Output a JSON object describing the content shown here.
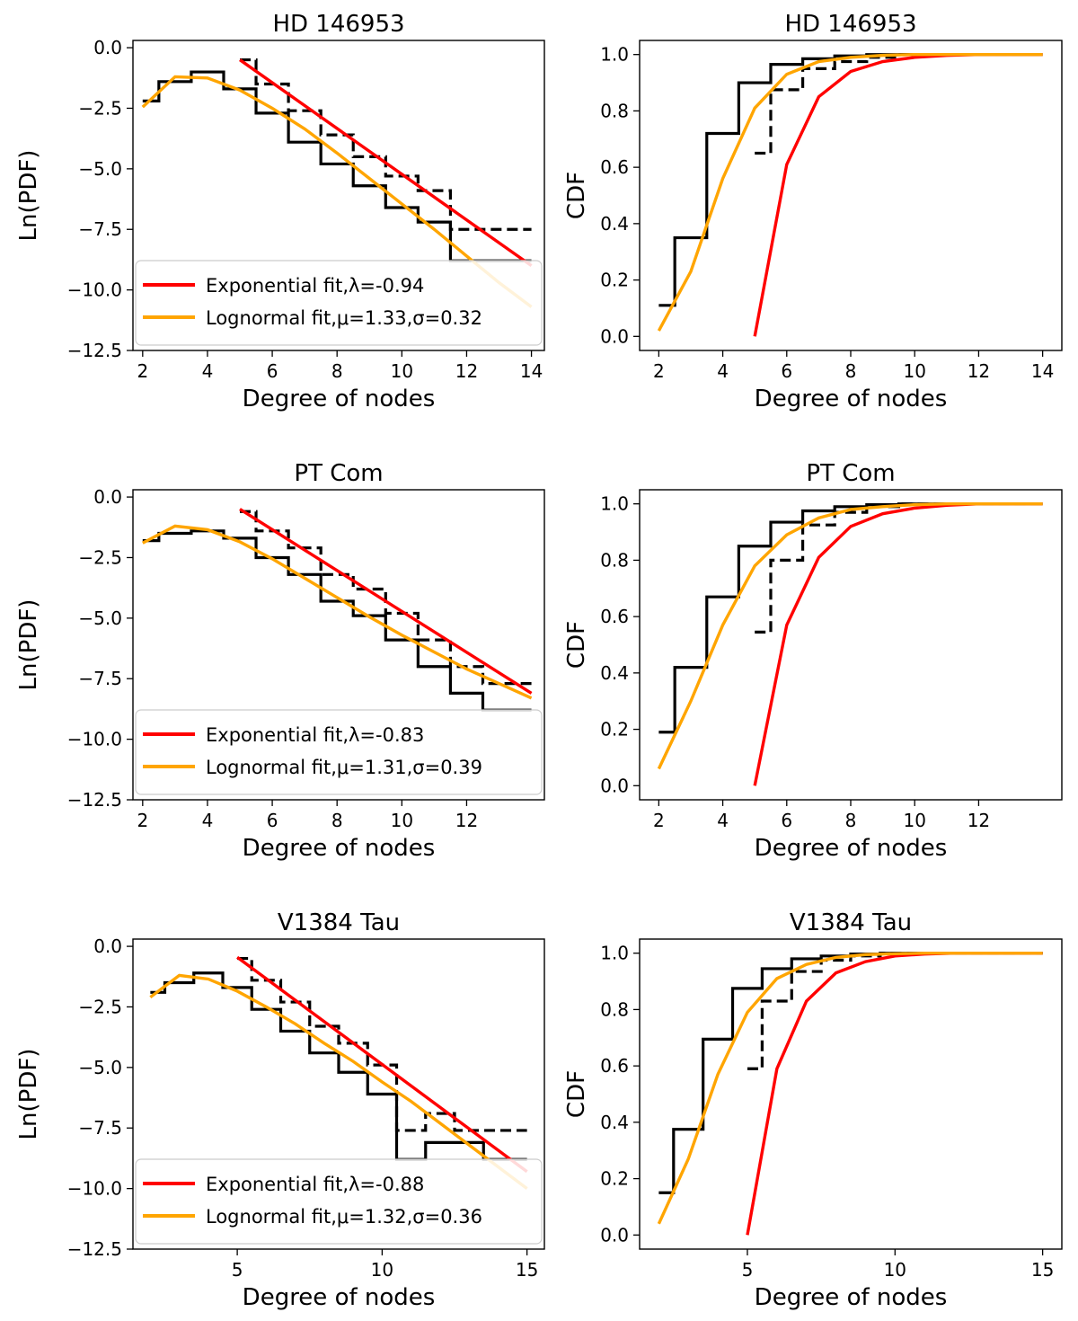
{
  "chart_data": [
    {
      "type": "line",
      "panel": "pdf",
      "title": "HD 146953",
      "xlabel": "Degree of nodes",
      "ylabel": "Ln(PDF)",
      "xlim": [
        1.7,
        14.4
      ],
      "ylim": [
        -12.5,
        0.3
      ],
      "xticks": [
        2,
        4,
        6,
        8,
        10,
        12,
        14
      ],
      "yticks": [
        0.0,
        -2.5,
        -5.0,
        -7.5,
        -10.0,
        -12.5
      ],
      "legend": "lower-left",
      "series": [
        {
          "name": "",
          "style": "step-solid",
          "color": "#000000",
          "x": [
            2,
            3,
            4,
            5,
            6,
            7,
            8,
            9,
            10,
            11,
            12,
            13,
            14
          ],
          "y": [
            -2.2,
            -1.4,
            -1.0,
            -1.7,
            -2.7,
            -3.9,
            -4.8,
            -5.7,
            -6.6,
            -7.2,
            -8.8,
            -8.8,
            -8.8
          ]
        },
        {
          "name": "",
          "style": "step-dashed",
          "color": "#000000",
          "x": [
            5,
            6,
            7,
            8,
            9,
            10,
            11,
            12,
            13,
            14
          ],
          "y": [
            -0.5,
            -1.5,
            -2.6,
            -3.6,
            -4.5,
            -5.3,
            -5.9,
            -7.5,
            -7.5,
            -7.5
          ]
        },
        {
          "name": "Exponential fit,λ=-0.94",
          "style": "line",
          "color": "#ff0000",
          "x": [
            5,
            14
          ],
          "y": [
            -0.5,
            -9.0
          ]
        },
        {
          "name": "Lognormal fit,μ=1.33,σ=0.32",
          "style": "line",
          "color": "#ffa500",
          "x": [
            2,
            3,
            4,
            5,
            6,
            7,
            8,
            9,
            10,
            11,
            12,
            13,
            14
          ],
          "y": [
            -2.45,
            -1.2,
            -1.25,
            -1.75,
            -2.5,
            -3.35,
            -4.35,
            -5.4,
            -6.45,
            -7.5,
            -8.6,
            -9.7,
            -10.7
          ]
        }
      ]
    },
    {
      "type": "line",
      "panel": "cdf",
      "title": "HD 146953",
      "xlabel": "Degree of nodes",
      "ylabel": "CDF",
      "xlim": [
        1.4,
        14.6
      ],
      "ylim": [
        -0.05,
        1.05
      ],
      "xticks": [
        2,
        4,
        6,
        8,
        10,
        12,
        14
      ],
      "yticks": [
        0.0,
        0.2,
        0.4,
        0.6,
        0.8,
        1.0
      ],
      "series": [
        {
          "name": "",
          "style": "step-solid",
          "color": "#000000",
          "x": [
            2,
            3,
            4,
            5,
            6,
            7,
            8,
            9,
            10,
            11,
            12,
            13,
            14
          ],
          "y": [
            0.11,
            0.35,
            0.72,
            0.9,
            0.965,
            0.985,
            0.995,
            1.0,
            1.0,
            1.0,
            1.0,
            1.0,
            1.0
          ]
        },
        {
          "name": "",
          "style": "step-dashed",
          "color": "#000000",
          "x": [
            5,
            6,
            7,
            8,
            9,
            10,
            11,
            12,
            13,
            14
          ],
          "y": [
            0.65,
            0.875,
            0.95,
            0.975,
            0.99,
            1.0,
            1.0,
            1.0,
            1.0,
            1.0
          ]
        },
        {
          "name": "",
          "style": "line",
          "color": "#ff0000",
          "x": [
            5,
            6,
            7,
            8,
            9,
            10,
            11,
            12,
            13,
            14
          ],
          "y": [
            0.0,
            0.61,
            0.85,
            0.94,
            0.975,
            0.99,
            0.997,
            1.0,
            1.0,
            1.0
          ]
        },
        {
          "name": "",
          "style": "line",
          "color": "#ffa500",
          "x": [
            2,
            3,
            4,
            5,
            6,
            7,
            8,
            9,
            10,
            11,
            12,
            13,
            14
          ],
          "y": [
            0.02,
            0.23,
            0.56,
            0.81,
            0.93,
            0.975,
            0.99,
            0.997,
            1.0,
            1.0,
            1.0,
            1.0,
            1.0
          ]
        }
      ]
    },
    {
      "type": "line",
      "panel": "pdf",
      "title": "PT Com",
      "xlabel": "Degree of nodes",
      "ylabel": "Ln(PDF)",
      "xlim": [
        1.7,
        14.4
      ],
      "ylim": [
        -12.5,
        0.3
      ],
      "xticks": [
        2,
        4,
        6,
        8,
        10,
        12
      ],
      "yticks": [
        0.0,
        -2.5,
        -5.0,
        -7.5,
        -10.0,
        -12.5
      ],
      "legend": "lower-left",
      "series": [
        {
          "name": "",
          "style": "step-solid",
          "color": "#000000",
          "x": [
            2,
            3,
            4,
            5,
            6,
            7,
            8,
            9,
            10,
            11,
            12,
            13,
            14
          ],
          "y": [
            -1.8,
            -1.5,
            -1.4,
            -1.7,
            -2.5,
            -3.2,
            -4.3,
            -4.9,
            -5.9,
            -7.0,
            -8.1,
            -8.8,
            -8.8
          ]
        },
        {
          "name": "",
          "style": "step-dashed",
          "color": "#000000",
          "x": [
            5,
            6,
            7,
            8,
            9,
            10,
            11,
            12,
            13,
            14
          ],
          "y": [
            -0.6,
            -1.4,
            -2.1,
            -3.2,
            -3.8,
            -4.8,
            -5.9,
            -7.0,
            -7.7,
            -7.7
          ]
        },
        {
          "name": "Exponential fit,λ=-0.83",
          "style": "line",
          "color": "#ff0000",
          "x": [
            5,
            14
          ],
          "y": [
            -0.5,
            -8.1
          ]
        },
        {
          "name": "Lognormal fit,μ=1.31,σ=0.39",
          "style": "line",
          "color": "#ffa500",
          "x": [
            2,
            3,
            4,
            5,
            6,
            7,
            8,
            9,
            10,
            11,
            12,
            13,
            14
          ],
          "y": [
            -1.9,
            -1.2,
            -1.35,
            -1.85,
            -2.55,
            -3.35,
            -4.15,
            -4.95,
            -5.7,
            -6.4,
            -7.1,
            -7.7,
            -8.3
          ]
        }
      ]
    },
    {
      "type": "line",
      "panel": "cdf",
      "title": "PT Com",
      "xlabel": "Degree of nodes",
      "ylabel": "CDF",
      "xlim": [
        1.4,
        14.6
      ],
      "ylim": [
        -0.05,
        1.05
      ],
      "xticks": [
        2,
        4,
        6,
        8,
        10,
        12
      ],
      "yticks": [
        0.0,
        0.2,
        0.4,
        0.6,
        0.8,
        1.0
      ],
      "series": [
        {
          "name": "",
          "style": "step-solid",
          "color": "#000000",
          "x": [
            2,
            3,
            4,
            5,
            6,
            7,
            8,
            9,
            10,
            11,
            12,
            13,
            14
          ],
          "y": [
            0.19,
            0.42,
            0.67,
            0.85,
            0.935,
            0.975,
            0.99,
            0.997,
            1.0,
            1.0,
            1.0,
            1.0,
            1.0
          ]
        },
        {
          "name": "",
          "style": "step-dashed",
          "color": "#000000",
          "x": [
            5,
            6,
            7,
            8,
            9,
            10,
            11,
            12,
            13,
            14
          ],
          "y": [
            0.545,
            0.8,
            0.925,
            0.97,
            0.99,
            1.0,
            1.0,
            1.0,
            1.0,
            1.0
          ]
        },
        {
          "name": "",
          "style": "line",
          "color": "#ff0000",
          "x": [
            5,
            6,
            7,
            8,
            9,
            10,
            11,
            12,
            13,
            14
          ],
          "y": [
            0.0,
            0.57,
            0.81,
            0.92,
            0.965,
            0.985,
            0.995,
            1.0,
            1.0,
            1.0
          ]
        },
        {
          "name": "",
          "style": "line",
          "color": "#ffa500",
          "x": [
            2,
            3,
            4,
            5,
            6,
            7,
            8,
            9,
            10,
            11,
            12,
            13,
            14
          ],
          "y": [
            0.06,
            0.3,
            0.57,
            0.78,
            0.89,
            0.95,
            0.98,
            0.99,
            0.997,
            1.0,
            1.0,
            1.0,
            1.0
          ]
        }
      ]
    },
    {
      "type": "line",
      "panel": "pdf",
      "title": "V1384 Tau",
      "xlabel": "Degree of nodes",
      "ylabel": "Ln(PDF)",
      "xlim": [
        1.4,
        15.6
      ],
      "ylim": [
        -12.5,
        0.3
      ],
      "xticks": [
        5,
        10,
        15
      ],
      "yticks": [
        0.0,
        -2.5,
        -5.0,
        -7.5,
        -10.0,
        -12.5
      ],
      "legend": "lower-left",
      "series": [
        {
          "name": "",
          "style": "step-solid",
          "color": "#000000",
          "x": [
            2,
            3,
            4,
            5,
            6,
            7,
            8,
            9,
            10,
            11,
            12,
            13,
            14,
            15
          ],
          "y": [
            -1.9,
            -1.5,
            -1.1,
            -1.7,
            -2.6,
            -3.5,
            -4.4,
            -5.2,
            -6.1,
            -8.8,
            -8.1,
            -8.1,
            -8.8,
            -8.8
          ]
        },
        {
          "name": "",
          "style": "step-dashed",
          "color": "#000000",
          "x": [
            5,
            6,
            7,
            8,
            9,
            10,
            11,
            12,
            13,
            14,
            15
          ],
          "y": [
            -0.5,
            -1.4,
            -2.3,
            -3.3,
            -4.0,
            -4.9,
            -7.6,
            -6.9,
            -7.6,
            -7.6,
            -7.6
          ]
        },
        {
          "name": "Exponential fit,λ=-0.88",
          "style": "line",
          "color": "#ff0000",
          "x": [
            5,
            15
          ],
          "y": [
            -0.45,
            -9.3
          ]
        },
        {
          "name": "Lognormal fit,μ=1.32,σ=0.36",
          "style": "line",
          "color": "#ffa500",
          "x": [
            2,
            3,
            4,
            5,
            6,
            7,
            8,
            9,
            10,
            11,
            12,
            13,
            14,
            15
          ],
          "y": [
            -2.1,
            -1.2,
            -1.35,
            -1.85,
            -2.5,
            -3.2,
            -4.0,
            -4.75,
            -5.6,
            -6.4,
            -7.3,
            -8.2,
            -9.1,
            -10.0
          ]
        }
      ]
    },
    {
      "type": "line",
      "panel": "cdf",
      "title": "V1384 Tau",
      "xlabel": "Degree of nodes",
      "ylabel": "CDF",
      "xlim": [
        1.35,
        15.65
      ],
      "ylim": [
        -0.05,
        1.05
      ],
      "xticks": [
        5,
        10,
        15
      ],
      "yticks": [
        0.0,
        0.2,
        0.4,
        0.6,
        0.8,
        1.0
      ],
      "series": [
        {
          "name": "",
          "style": "step-solid",
          "color": "#000000",
          "x": [
            2,
            3,
            4,
            5,
            6,
            7,
            8,
            9,
            10,
            11,
            12,
            13,
            14,
            15
          ],
          "y": [
            0.15,
            0.375,
            0.695,
            0.875,
            0.945,
            0.98,
            0.99,
            0.997,
            1.0,
            1.0,
            1.0,
            1.0,
            1.0,
            1.0
          ]
        },
        {
          "name": "",
          "style": "step-dashed",
          "color": "#000000",
          "x": [
            5,
            6,
            7,
            8,
            9,
            10,
            11,
            12,
            13,
            14,
            15
          ],
          "y": [
            0.59,
            0.83,
            0.935,
            0.975,
            0.99,
            1.0,
            1.0,
            1.0,
            1.0,
            1.0,
            1.0
          ]
        },
        {
          "name": "",
          "style": "line",
          "color": "#ff0000",
          "x": [
            5,
            6,
            7,
            8,
            9,
            10,
            11,
            12,
            13,
            14,
            15
          ],
          "y": [
            0.0,
            0.59,
            0.83,
            0.93,
            0.97,
            0.99,
            0.997,
            1.0,
            1.0,
            1.0,
            1.0
          ]
        },
        {
          "name": "",
          "style": "line",
          "color": "#ffa500",
          "x": [
            2,
            3,
            4,
            5,
            6,
            7,
            8,
            9,
            10,
            11,
            12,
            13,
            14,
            15
          ],
          "y": [
            0.04,
            0.27,
            0.57,
            0.79,
            0.91,
            0.96,
            0.985,
            0.995,
            0.998,
            1.0,
            1.0,
            1.0,
            1.0,
            1.0
          ]
        }
      ]
    }
  ]
}
